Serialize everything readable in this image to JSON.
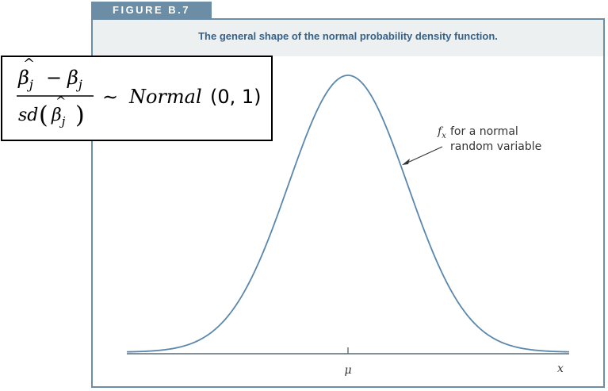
{
  "figure": {
    "label": "FIGURE B.7",
    "caption": "The general shape of the normal probability density function."
  },
  "formula": {
    "numerator_left": "β",
    "numerator_left_sub": "j",
    "minus": "−",
    "numerator_right": "β",
    "numerator_right_sub": "j",
    "denominator_fn": "sd",
    "denominator_var": "β",
    "denominator_sub": "j",
    "relation": "∼",
    "distribution": "Normal",
    "params": "(0, 1)"
  },
  "plot": {
    "annotation_fx": "f",
    "annotation_fx_sub": "x",
    "annotation_line1": "for a normal",
    "annotation_line2": "random variable",
    "tick_label": "μ",
    "axis_label": "x",
    "curve_color": "#5a87ad",
    "axis_color": "#5d6b73"
  }
}
